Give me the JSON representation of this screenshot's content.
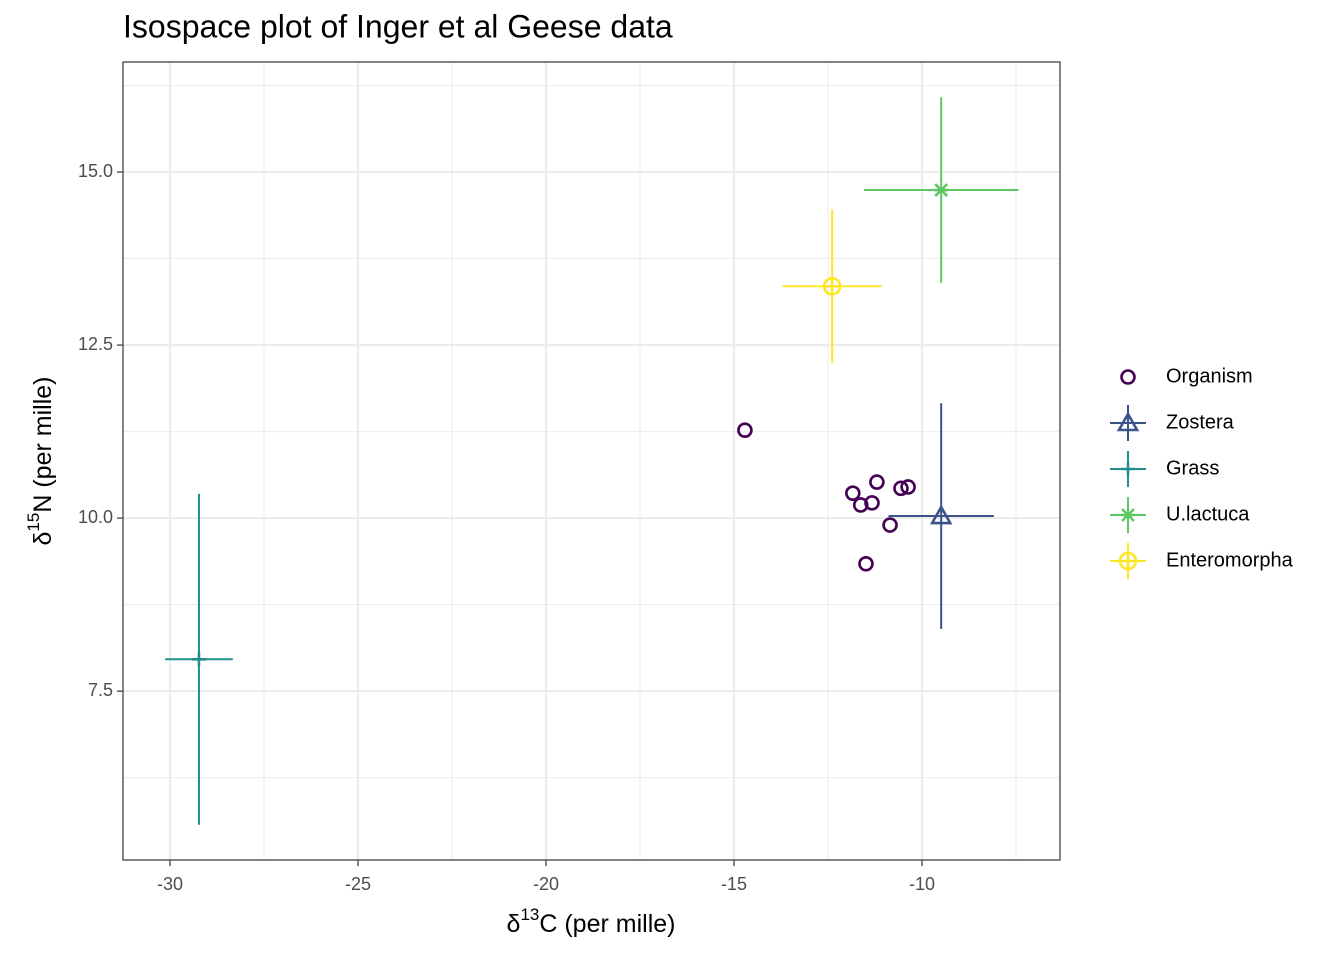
{
  "chart_data": {
    "type": "scatter",
    "title": "Isospace plot of Inger et al Geese data",
    "x_label": [
      "δ",
      "13",
      "C (per mille)"
    ],
    "y_label": [
      "δ",
      "15",
      "N (per mille)"
    ],
    "xlim": [
      -31.25,
      -6.33
    ],
    "ylim": [
      5.06,
      16.59
    ],
    "xticks": [
      -30,
      -25,
      -20,
      -15,
      -10
    ],
    "yticks": [
      {
        "value": 7.5,
        "label": "7.5"
      },
      {
        "value": 10,
        "label": "10.0"
      },
      {
        "value": 12.5,
        "label": "12.5"
      },
      {
        "value": 15,
        "label": "15.0"
      }
    ],
    "grid": true,
    "minor_grid": true,
    "legend": "right",
    "series": [
      {
        "name": "Organism",
        "color": "#440154",
        "marker": "circle",
        "x": [
          -14.71,
          -11.84,
          -11.63,
          -11.33,
          -11.2,
          -10.56,
          -10.37,
          -10.85,
          -11.49
        ],
        "y": [
          11.27,
          10.36,
          10.19,
          10.22,
          10.52,
          10.43,
          10.45,
          9.9,
          9.34
        ]
      },
      {
        "name": "Zostera",
        "color": "#3b528b",
        "marker": "triangle",
        "x": [
          -9.49
        ],
        "y": [
          10.03
        ],
        "xerr": [
          1.4
        ],
        "yerr": [
          1.63
        ]
      },
      {
        "name": "Grass",
        "color": "#21908c",
        "marker": "plus",
        "x": [
          -29.23
        ],
        "y": [
          7.96
        ],
        "xerr": [
          0.9
        ],
        "yerr": [
          2.39
        ]
      },
      {
        "name": "U.lactuca",
        "color": "#5dc863",
        "marker": "asterisk",
        "x": [
          -9.49
        ],
        "y": [
          14.74
        ],
        "xerr": [
          2.05
        ],
        "yerr": [
          1.34
        ]
      },
      {
        "name": "Enteromorpha",
        "color": "#fde725",
        "marker": "circle-plus",
        "x": [
          -12.39
        ],
        "y": [
          13.35
        ],
        "xerr": [
          1.32
        ],
        "yerr": [
          1.11
        ]
      }
    ]
  }
}
